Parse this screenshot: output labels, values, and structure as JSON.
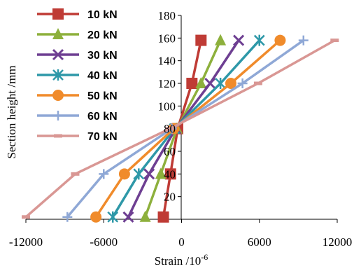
{
  "chart_data": {
    "type": "line",
    "xlabel": "Strain /10",
    "xlabel_superscript": "-6",
    "ylabel": "Section height /mm",
    "xlim": [
      -12000,
      12000
    ],
    "ylim": [
      0,
      180
    ],
    "x_ticks": [
      -12000,
      -6000,
      0,
      6000,
      12000
    ],
    "x_tick_labels": [
      "-12000",
      "-6000",
      "0",
      "6000",
      "12000"
    ],
    "y_ticks": [
      20,
      40,
      60,
      80,
      100,
      120,
      140,
      160,
      180
    ],
    "y_tick_labels": [
      "20",
      "40",
      "60",
      "80",
      "100",
      "120",
      "140",
      "160",
      "180"
    ],
    "grid": false,
    "legend_position": "top-left",
    "series": [
      {
        "name": "10 kN",
        "color": "#bf3b35",
        "marker": "square",
        "points": [
          [
            -1400,
            2
          ],
          [
            -850,
            40
          ],
          [
            -300,
            80
          ],
          [
            800,
            120
          ],
          [
            1500,
            158
          ]
        ]
      },
      {
        "name": "20 kN",
        "color": "#8db03c",
        "marker": "triangle",
        "points": [
          [
            -2800,
            2
          ],
          [
            -1600,
            40
          ],
          [
            -350,
            80
          ],
          [
            1500,
            120
          ],
          [
            3000,
            158
          ]
        ]
      },
      {
        "name": "30 kN",
        "color": "#6e3f92",
        "marker": "x",
        "points": [
          [
            -4100,
            2
          ],
          [
            -2500,
            40
          ],
          [
            -450,
            80
          ],
          [
            2200,
            120
          ],
          [
            4400,
            158
          ]
        ]
      },
      {
        "name": "40 kN",
        "color": "#2e98a8",
        "marker": "asterisk",
        "points": [
          [
            -5300,
            2
          ],
          [
            -3300,
            40
          ],
          [
            -550,
            80
          ],
          [
            3000,
            120
          ],
          [
            6000,
            158
          ]
        ]
      },
      {
        "name": "50 kN",
        "color": "#f08b2b",
        "marker": "circle",
        "points": [
          [
            -6600,
            2
          ],
          [
            -4400,
            40
          ],
          [
            -600,
            80
          ],
          [
            3800,
            120
          ],
          [
            7600,
            158
          ]
        ]
      },
      {
        "name": "60 kN",
        "color": "#8fa8d6",
        "marker": "plus",
        "points": [
          [
            -8800,
            2
          ],
          [
            -6000,
            40
          ],
          [
            -750,
            80
          ],
          [
            4700,
            120
          ],
          [
            9400,
            158
          ]
        ]
      },
      {
        "name": "70 kN",
        "color": "#d99794",
        "marker": "dash",
        "points": [
          [
            -12000,
            2
          ],
          [
            -8200,
            40
          ],
          [
            -900,
            80
          ],
          [
            5900,
            120
          ],
          [
            11800,
            158
          ]
        ]
      }
    ]
  }
}
